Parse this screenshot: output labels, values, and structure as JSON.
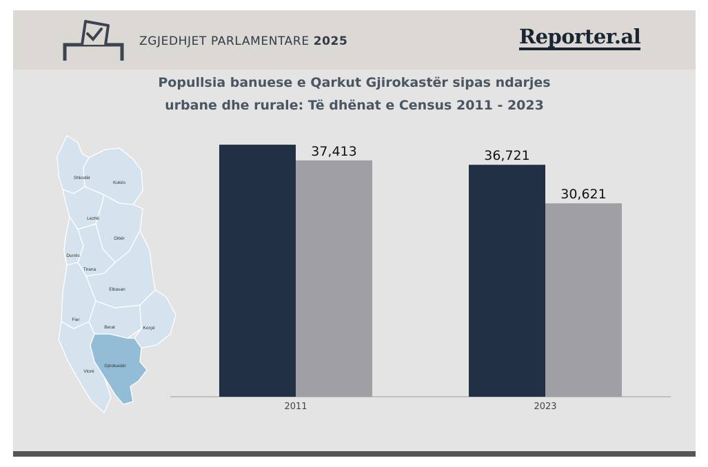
{
  "header": {
    "title_prefix": "ZGJEDHJET PARLAMENTARE",
    "title_year": "2025",
    "logo": "Reporter.al",
    "icon": "ballot-box-icon"
  },
  "title_line1": "Popullsia banuese e Qarkut Gjirokastër sipas ndarjes",
  "title_line2": "urbane dhe rurale: Të dhënat e Census 2011 - 2023",
  "map": {
    "regions": [
      "Shkodër",
      "Kukës",
      "Lezhë",
      "Dibër",
      "Durrës",
      "Tirana",
      "Elbasan",
      "Fier",
      "Berat",
      "Korçë",
      "Vlorë",
      "Gjirokastër"
    ],
    "highlighted": "Gjirokastër"
  },
  "colors": {
    "series1": "#213045",
    "series2": "#a09fa4",
    "map_fill": "#d5e3ef",
    "map_highlight": "#93bcd6"
  },
  "chart_data": {
    "type": "bar",
    "categories": [
      "2011",
      "2023"
    ],
    "series": [
      {
        "values": [
          39900,
          36721
        ],
        "labels": [
          "",
          "36,721"
        ]
      },
      {
        "values": [
          37413,
          30621
        ],
        "labels": [
          "37,413",
          "30,621"
        ]
      }
    ],
    "ylim": [
      0,
      41000
    ],
    "title": "",
    "xlabel": "",
    "ylabel": "",
    "grid": false
  }
}
